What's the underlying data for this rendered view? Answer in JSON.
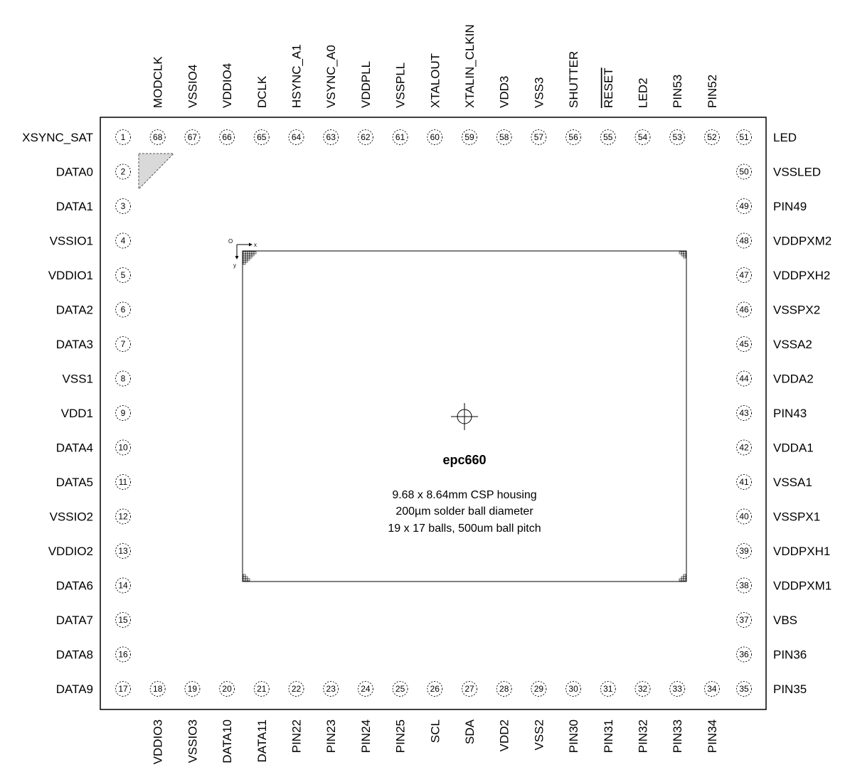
{
  "chip": {
    "name": "epc660",
    "spec_lines": [
      "9.68 x 8.64mm CSP housing",
      "200µm solder ball diameter",
      "19 x 17 balls, 500um ball pitch"
    ],
    "axis": {
      "origin": "O",
      "x": "x",
      "y": "y"
    }
  },
  "pins_left": [
    {
      "num": "1",
      "label": "XSYNC_SAT"
    },
    {
      "num": "2",
      "label": "DATA0"
    },
    {
      "num": "3",
      "label": "DATA1"
    },
    {
      "num": "4",
      "label": "VSSIO1"
    },
    {
      "num": "5",
      "label": "VDDIO1"
    },
    {
      "num": "6",
      "label": "DATA2"
    },
    {
      "num": "7",
      "label": "DATA3"
    },
    {
      "num": "8",
      "label": "VSS1"
    },
    {
      "num": "9",
      "label": "VDD1"
    },
    {
      "num": "10",
      "label": "DATA4"
    },
    {
      "num": "11",
      "label": "DATA5"
    },
    {
      "num": "12",
      "label": "VSSIO2"
    },
    {
      "num": "13",
      "label": "VDDIO2"
    },
    {
      "num": "14",
      "label": "DATA6"
    },
    {
      "num": "15",
      "label": "DATA7"
    },
    {
      "num": "16",
      "label": "DATA8"
    },
    {
      "num": "17",
      "label": "DATA9"
    }
  ],
  "pins_right": [
    {
      "num": "51",
      "label": "LED"
    },
    {
      "num": "50",
      "label": "VSSLED"
    },
    {
      "num": "49",
      "label": "PIN49"
    },
    {
      "num": "48",
      "label": "VDDPXM2"
    },
    {
      "num": "47",
      "label": "VDDPXH2"
    },
    {
      "num": "46",
      "label": "VSSPX2"
    },
    {
      "num": "45",
      "label": "VSSA2"
    },
    {
      "num": "44",
      "label": "VDDA2"
    },
    {
      "num": "43",
      "label": "PIN43"
    },
    {
      "num": "42",
      "label": "VDDA1"
    },
    {
      "num": "41",
      "label": "VSSA1"
    },
    {
      "num": "40",
      "label": "VSSPX1"
    },
    {
      "num": "39",
      "label": "VDDPXH1"
    },
    {
      "num": "38",
      "label": "VDDPXM1"
    },
    {
      "num": "37",
      "label": "VBS"
    },
    {
      "num": "36",
      "label": "PIN36"
    },
    {
      "num": "35",
      "label": "PIN35"
    }
  ],
  "pins_top": [
    {
      "num": "68",
      "label": "MODCLK"
    },
    {
      "num": "67",
      "label": "VSSIO4"
    },
    {
      "num": "66",
      "label": "VDDIO4"
    },
    {
      "num": "65",
      "label": "DCLK"
    },
    {
      "num": "64",
      "label": "HSYNC_A1"
    },
    {
      "num": "63",
      "label": "VSYNC_A0"
    },
    {
      "num": "62",
      "label": "VDDPLL"
    },
    {
      "num": "61",
      "label": "VSSPLL"
    },
    {
      "num": "60",
      "label": "XTALOUT"
    },
    {
      "num": "59",
      "label": "XTALIN_CLKIN"
    },
    {
      "num": "58",
      "label": "VDD3"
    },
    {
      "num": "57",
      "label": "VSS3"
    },
    {
      "num": "56",
      "label": "SHUTTER"
    },
    {
      "num": "55",
      "label": "RESET",
      "overline": true
    },
    {
      "num": "54",
      "label": "LED2"
    },
    {
      "num": "53",
      "label": "PIN53"
    },
    {
      "num": "52",
      "label": "PIN52"
    }
  ],
  "pins_bottom": [
    {
      "num": "18",
      "label": "VDDIO3"
    },
    {
      "num": "19",
      "label": "VSSIO3"
    },
    {
      "num": "20",
      "label": "DATA10"
    },
    {
      "num": "21",
      "label": "DATA11"
    },
    {
      "num": "22",
      "label": "PIN22"
    },
    {
      "num": "23",
      "label": "PIN23"
    },
    {
      "num": "24",
      "label": "PIN24"
    },
    {
      "num": "25",
      "label": "PIN25"
    },
    {
      "num": "26",
      "label": "SCL"
    },
    {
      "num": "27",
      "label": "SDA"
    },
    {
      "num": "28",
      "label": "VDD2"
    },
    {
      "num": "29",
      "label": "VSS2"
    },
    {
      "num": "30",
      "label": "PIN30"
    },
    {
      "num": "31",
      "label": "PIN31"
    },
    {
      "num": "32",
      "label": "PIN32"
    },
    {
      "num": "33",
      "label": "PIN33"
    },
    {
      "num": "34",
      "label": "PIN34"
    }
  ]
}
